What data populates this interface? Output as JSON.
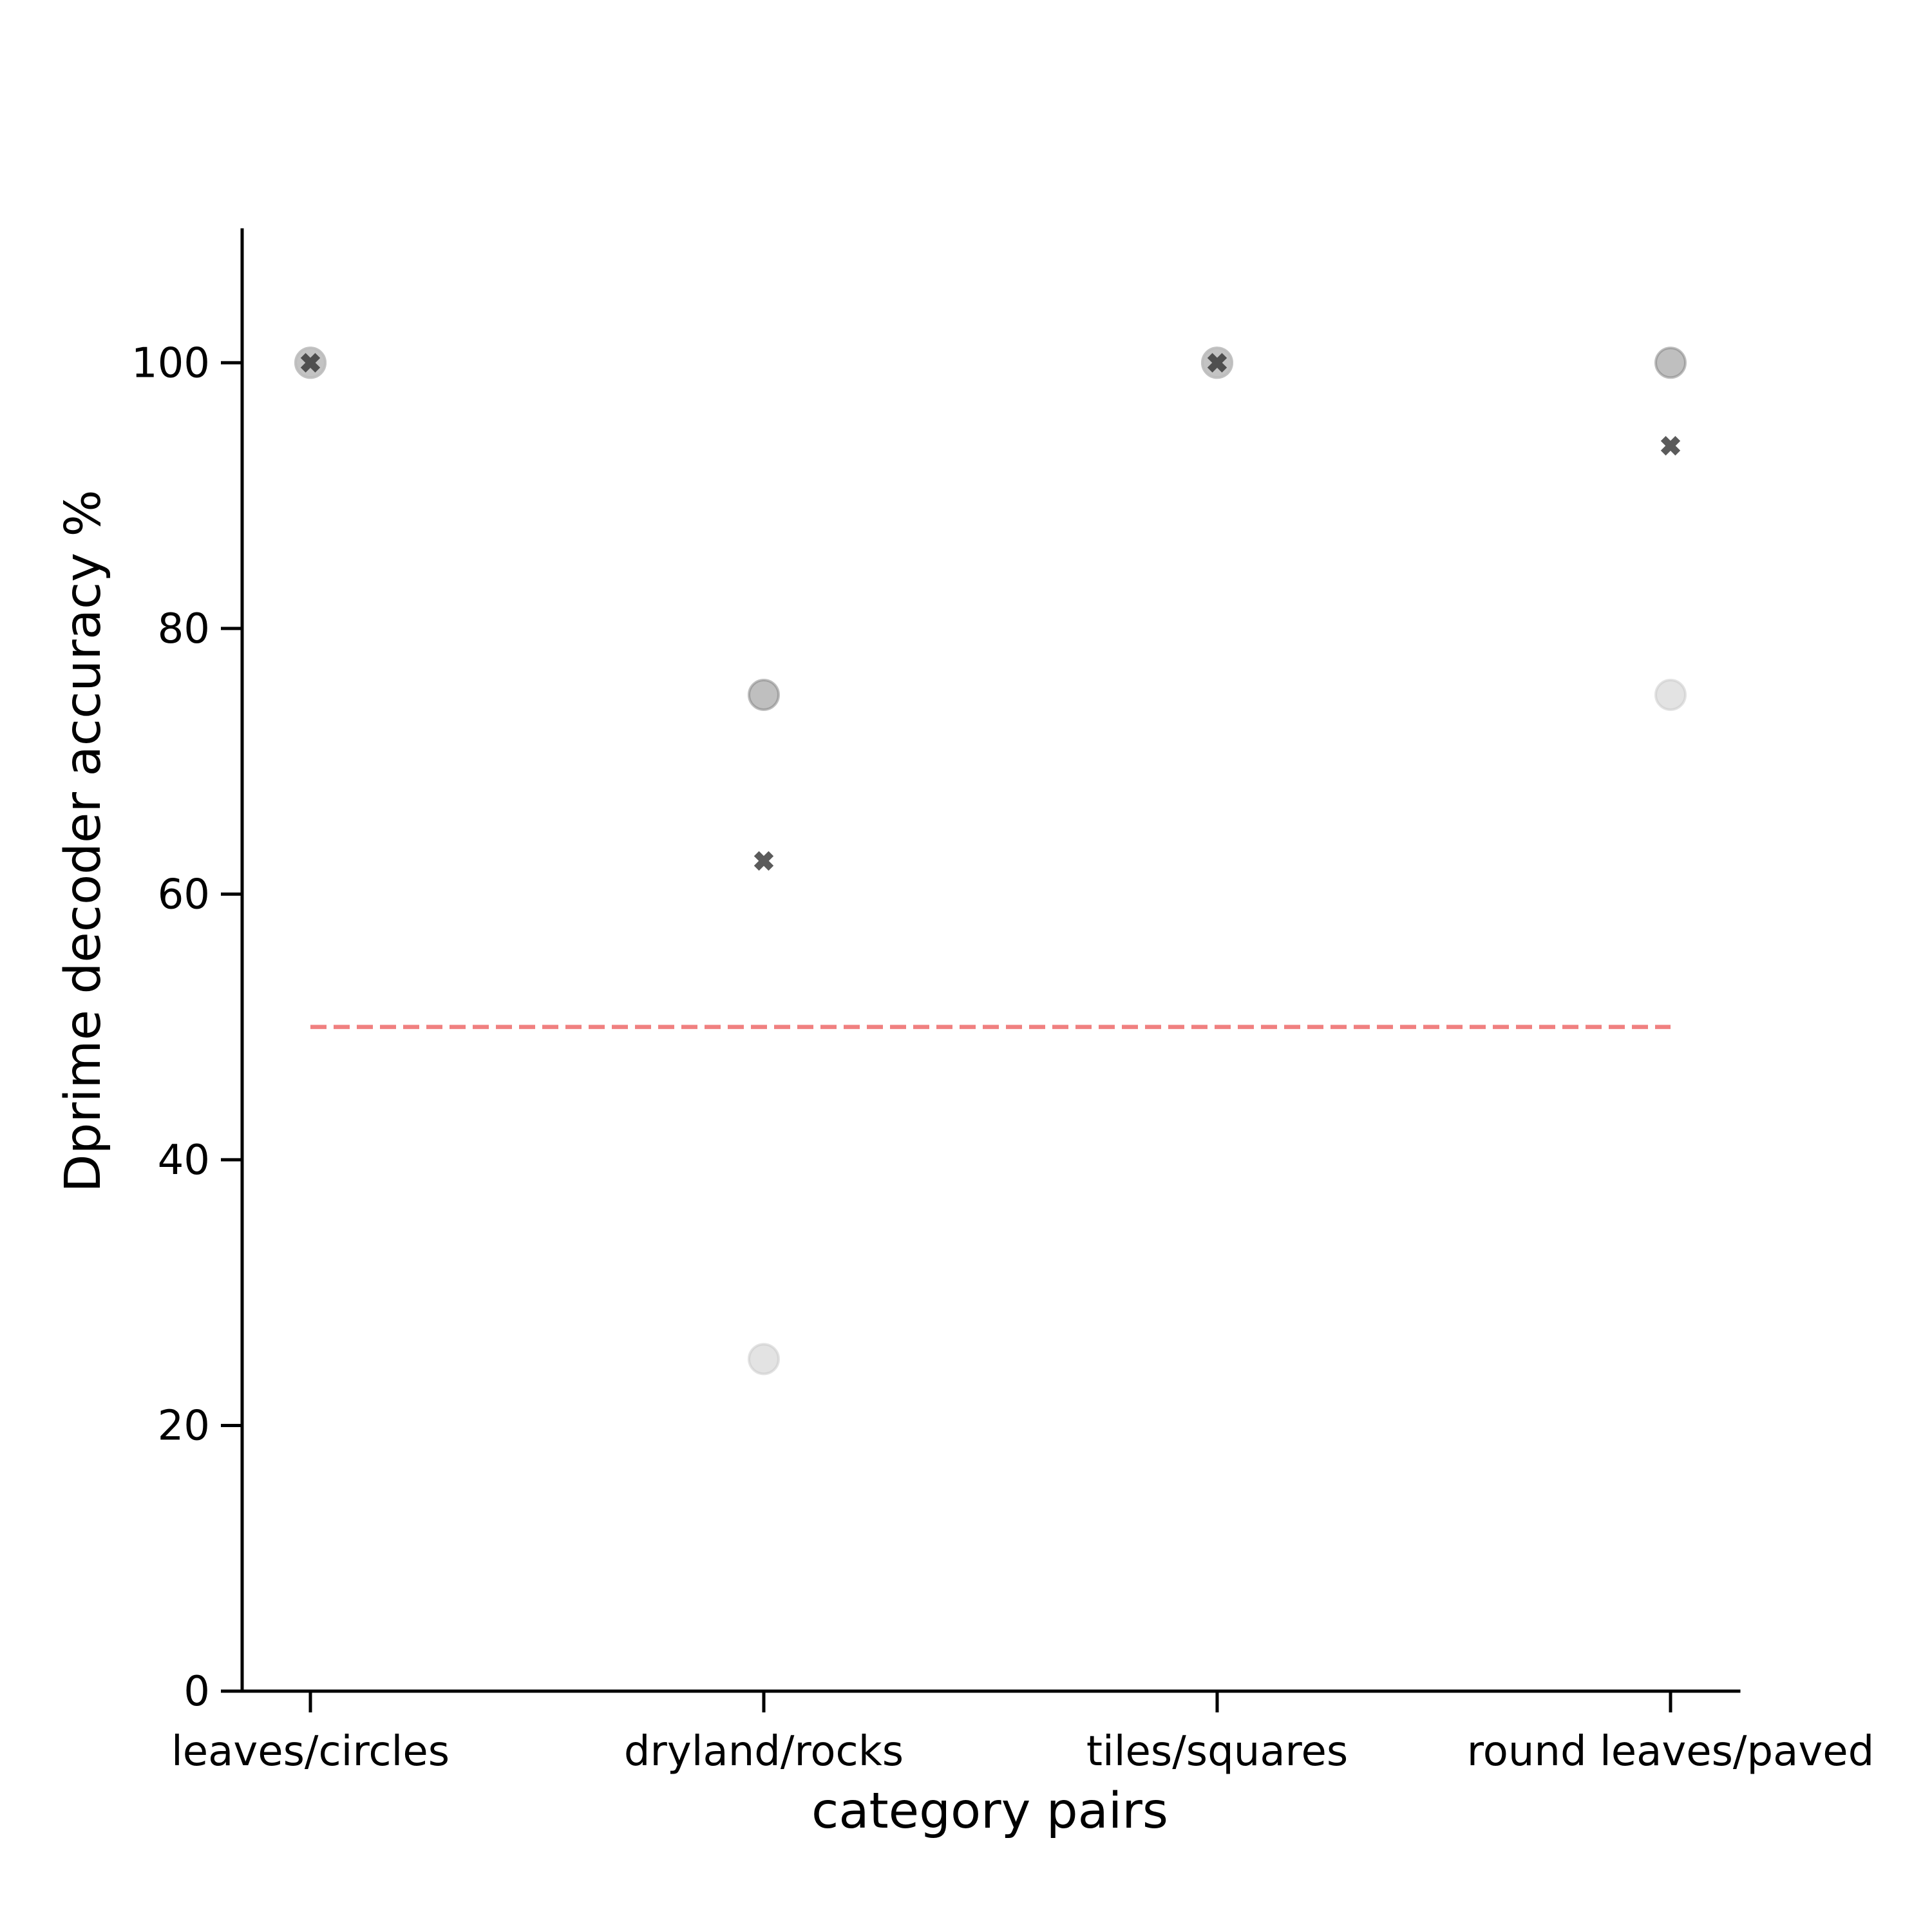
{
  "chart_data": {
    "type": "scatter",
    "title": "",
    "xlabel": "category pairs",
    "ylabel": "Dprime decoder accuracy %",
    "categories": [
      "leaves/circles",
      "dryland/rocks",
      "tiles/squares",
      "round leaves/paved"
    ],
    "ylim": [
      0,
      110
    ],
    "yticks": [
      0,
      20,
      40,
      60,
      80,
      100
    ],
    "ytick_labels": [
      "0",
      "20",
      "40",
      "60",
      "80",
      "100"
    ],
    "grid": false,
    "legend": "none",
    "series": [
      {
        "marker": "circle",
        "color": "#808080",
        "opacity": 0.5,
        "values": [
          100,
          75,
          100,
          100
        ]
      },
      {
        "marker": "circle",
        "color": "#c8c8c8",
        "opacity": 0.5,
        "values": [
          100,
          25,
          100,
          75
        ]
      },
      {
        "marker": "x",
        "color": "#333333",
        "opacity": 0.8,
        "values": [
          100,
          62.5,
          100,
          93.75
        ]
      }
    ],
    "reference_line": {
      "y": 50,
      "style": "dashed",
      "color": "#f08080"
    }
  }
}
